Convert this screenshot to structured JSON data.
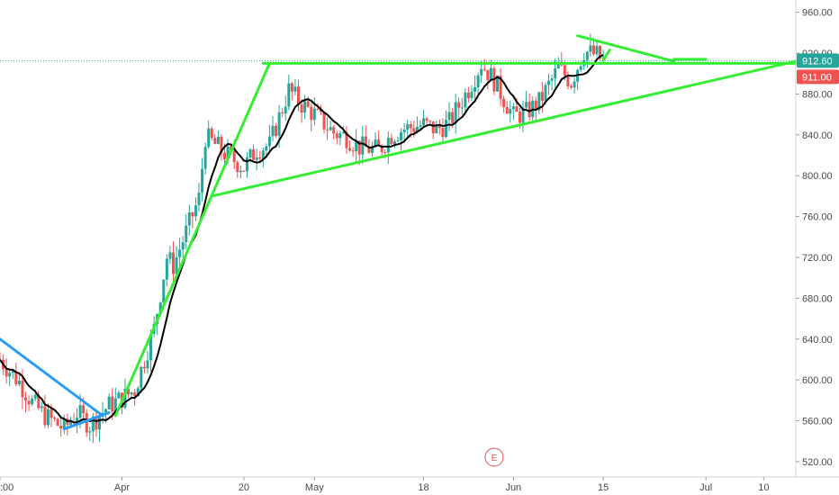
{
  "chart_data": {
    "type": "candlestick",
    "title": "",
    "xlabel": "",
    "ylabel": "",
    "ylim": [
      505,
      972
    ],
    "x_range": [
      "2020-03-13",
      "2020-07-15"
    ],
    "grid": false,
    "y_ticks": [
      {
        "value": 520,
        "label": "520.00"
      },
      {
        "value": 560,
        "label": "560.00"
      },
      {
        "value": 600,
        "label": "600.00"
      },
      {
        "value": 640,
        "label": "640.00"
      },
      {
        "value": 680,
        "label": "680.00"
      },
      {
        "value": 720,
        "label": "720.00"
      },
      {
        "value": 760,
        "label": "760.00"
      },
      {
        "value": 800,
        "label": "800.00"
      },
      {
        "value": 840,
        "label": "840.00"
      },
      {
        "value": 880,
        "label": "880.00"
      },
      {
        "value": 920,
        "label": "920.00"
      },
      {
        "value": 960,
        "label": "960.00"
      }
    ],
    "x_ticks": [
      {
        "date": "2020-03-13",
        "label": ":00"
      },
      {
        "date": "2020-04-01",
        "label": "Apr"
      },
      {
        "date": "2020-04-20",
        "label": "20"
      },
      {
        "date": "2020-05-01",
        "label": "May"
      },
      {
        "date": "2020-05-18",
        "label": "18"
      },
      {
        "date": "2020-06-01",
        "label": "Jun"
      },
      {
        "date": "2020-06-15",
        "label": "15"
      },
      {
        "date": "2020-07-01",
        "label": "Jul"
      },
      {
        "date": "2020-07-10",
        "label": "10"
      }
    ],
    "current_price": {
      "value": 912.6,
      "label": "912.60",
      "color": "#26a69a"
    },
    "secondary_price": {
      "value": 911.0,
      "label": "911.00",
      "color": "#ef5350"
    },
    "event_marker": {
      "date": "2020-05-29",
      "label": "E"
    },
    "colors": {
      "up": "#26a69a",
      "down": "#ef5350",
      "trendline": "#33ee33",
      "trendline_blue": "#2a9df4",
      "moving_average": "#000000"
    },
    "closes": [
      [
        "2020-03-13",
        620
      ],
      [
        "2020-03-16",
        598
      ],
      [
        "2020-03-18",
        578
      ],
      [
        "2020-03-20",
        565
      ],
      [
        "2020-03-23",
        552
      ],
      [
        "2020-03-25",
        568
      ],
      [
        "2020-03-27",
        556
      ],
      [
        "2020-03-30",
        575
      ],
      [
        "2020-04-01",
        582
      ],
      [
        "2020-04-03",
        590
      ],
      [
        "2020-04-06",
        650
      ],
      [
        "2020-04-08",
        720
      ],
      [
        "2020-04-09",
        712
      ],
      [
        "2020-04-13",
        778
      ],
      [
        "2020-04-14",
        838
      ],
      [
        "2020-04-16",
        828
      ],
      [
        "2020-04-17",
        822
      ],
      [
        "2020-04-20",
        808
      ],
      [
        "2020-04-22",
        826
      ],
      [
        "2020-04-24",
        830
      ],
      [
        "2020-04-27",
        884
      ],
      [
        "2020-04-29",
        870
      ],
      [
        "2020-05-01",
        860
      ],
      [
        "2020-05-04",
        842
      ],
      [
        "2020-05-06",
        838
      ],
      [
        "2020-05-08",
        828
      ],
      [
        "2020-05-11",
        825
      ],
      [
        "2020-05-13",
        840
      ],
      [
        "2020-05-15",
        846
      ],
      [
        "2020-05-18",
        850
      ],
      [
        "2020-05-20",
        845
      ],
      [
        "2020-05-22",
        852
      ],
      [
        "2020-05-25",
        885
      ],
      [
        "2020-05-27",
        910
      ],
      [
        "2020-05-29",
        893
      ],
      [
        "2020-06-01",
        858
      ],
      [
        "2020-06-03",
        862
      ],
      [
        "2020-06-05",
        872
      ],
      [
        "2020-06-08",
        905
      ],
      [
        "2020-06-10",
        892
      ],
      [
        "2020-06-12",
        922
      ],
      [
        "2020-06-14",
        918
      ],
      [
        "2020-06-15",
        912.6
      ]
    ],
    "trendlines": [
      {
        "name": "resistance",
        "from": [
          "2020-04-23",
          910
        ],
        "to": [
          "2020-07-15",
          910
        ]
      },
      {
        "name": "support",
        "from": [
          "2020-04-15",
          780
        ],
        "to": [
          "2020-07-15",
          912
        ]
      },
      {
        "name": "impulse",
        "from": [
          "2020-03-31",
          565
        ],
        "to": [
          "2020-04-24",
          910
        ]
      },
      {
        "name": "pennant-top",
        "from": [
          "2020-06-11",
          937
        ],
        "to": [
          "2020-06-26",
          912
        ]
      },
      {
        "name": "pennant-bottom",
        "from": [
          "2020-06-15",
          913
        ],
        "to": [
          "2020-06-16",
          923
        ]
      },
      {
        "name": "mini-channel",
        "from": [
          "2020-06-26",
          914
        ],
        "to": [
          "2020-07-01",
          914
        ]
      },
      {
        "name": "march-drop",
        "from": [
          "2020-03-13",
          640
        ],
        "to": [
          "2020-03-29",
          565
        ],
        "color": "blue"
      },
      {
        "name": "march-low",
        "from": [
          "2020-03-23",
          552
        ],
        "to": [
          "2020-03-30",
          568
        ],
        "color": "blue"
      }
    ]
  }
}
